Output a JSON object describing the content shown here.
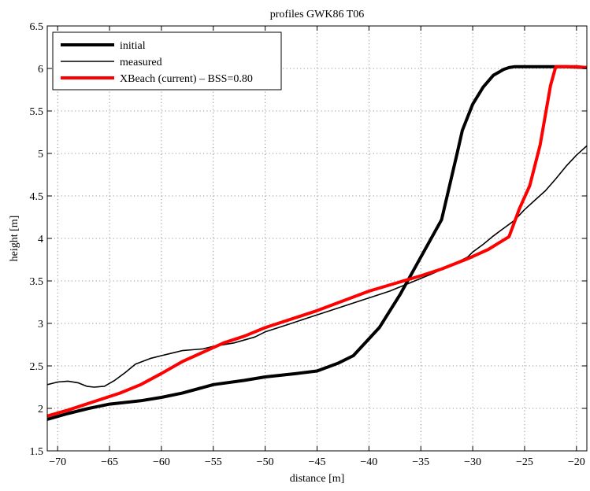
{
  "chart_data": {
    "type": "line",
    "title": "profiles GWK86 T06",
    "xlabel": "distance [m]",
    "ylabel": "height [m]",
    "xlim": [
      -71,
      -19
    ],
    "ylim": [
      1.5,
      6.5
    ],
    "xticks": [
      -70,
      -65,
      -60,
      -55,
      -50,
      -45,
      -40,
      -35,
      -30,
      -25,
      -20
    ],
    "yticks": [
      1.5,
      2,
      2.5,
      3,
      3.5,
      4,
      4.5,
      5,
      5.5,
      6,
      6.5
    ],
    "xtick_labels": [
      "−70",
      "−65",
      "−60",
      "−55",
      "−50",
      "−45",
      "−40",
      "−35",
      "−30",
      "−25",
      "−20"
    ],
    "ytick_labels": [
      "1.5",
      "2",
      "2.5",
      "3",
      "3.5",
      "4",
      "4.5",
      "5",
      "5.5",
      "6",
      "6.5"
    ],
    "grid": true,
    "legend_position": "top-left",
    "series": [
      {
        "name": "initial",
        "color": "#000000",
        "style": "thick",
        "x": [
          -71,
          -69,
          -67,
          -65,
          -62,
          -60,
          -58,
          -55,
          -52,
          -50,
          -47,
          -45,
          -43,
          -41.5,
          -39,
          -37,
          -35,
          -33,
          -31.5,
          -31,
          -30,
          -29,
          -28,
          -27,
          -26.5,
          -26,
          -25,
          -23,
          -21,
          -19
        ],
        "y": [
          1.87,
          1.94,
          2.0,
          2.05,
          2.09,
          2.13,
          2.18,
          2.28,
          2.33,
          2.37,
          2.41,
          2.44,
          2.53,
          2.62,
          2.95,
          3.34,
          3.78,
          4.22,
          5.0,
          5.27,
          5.58,
          5.78,
          5.92,
          5.99,
          6.01,
          6.02,
          6.02,
          6.02,
          6.02,
          6.01
        ]
      },
      {
        "name": "measured",
        "color": "#000000",
        "style": "thin",
        "x": [
          -71,
          -70,
          -69,
          -68,
          -67.2,
          -66.5,
          -65.5,
          -64.5,
          -63.5,
          -62.5,
          -61,
          -60,
          -59,
          -58,
          -57,
          -56,
          -55,
          -53,
          -51,
          -50,
          -48,
          -46,
          -44,
          -42,
          -40,
          -38,
          -36,
          -34,
          -32.5,
          -31.5,
          -30.5,
          -30,
          -29,
          -28,
          -27,
          -26,
          -25,
          -24,
          -23,
          -22,
          -21,
          -20,
          -19
        ],
        "y": [
          2.28,
          2.31,
          2.32,
          2.3,
          2.26,
          2.25,
          2.26,
          2.33,
          2.42,
          2.52,
          2.59,
          2.62,
          2.65,
          2.68,
          2.69,
          2.7,
          2.73,
          2.77,
          2.84,
          2.9,
          2.98,
          3.06,
          3.14,
          3.22,
          3.3,
          3.38,
          3.48,
          3.58,
          3.66,
          3.72,
          3.78,
          3.84,
          3.93,
          4.03,
          4.12,
          4.21,
          4.34,
          4.45,
          4.56,
          4.7,
          4.85,
          4.98,
          5.09
        ]
      },
      {
        "name": "XBeach (current) – BSS=0.80",
        "color": "#ff0000",
        "style": "thick",
        "x": [
          -71,
          -69,
          -66.5,
          -64,
          -62,
          -60,
          -58,
          -56,
          -54,
          -52,
          -50,
          -45,
          -40,
          -35,
          -33,
          -30.5,
          -28.5,
          -26.5,
          -25.5,
          -24.5,
          -23.5,
          -22.5,
          -22,
          -20,
          -19
        ],
        "y": [
          1.91,
          1.98,
          2.08,
          2.18,
          2.28,
          2.41,
          2.55,
          2.66,
          2.77,
          2.85,
          2.95,
          3.15,
          3.38,
          3.56,
          3.64,
          3.76,
          3.87,
          4.02,
          4.35,
          4.62,
          5.1,
          5.8,
          6.02,
          6.02,
          6.01
        ]
      }
    ]
  }
}
